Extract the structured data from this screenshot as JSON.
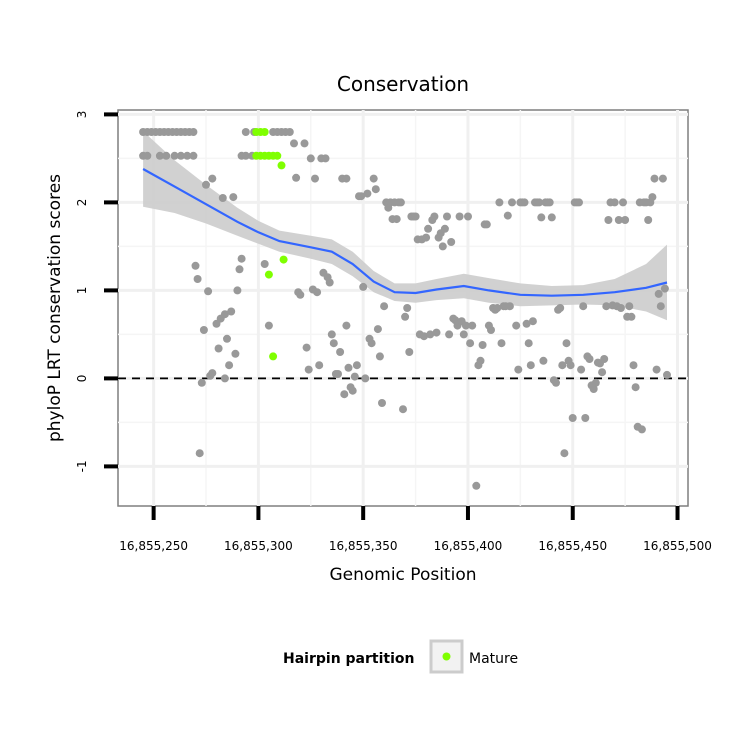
{
  "chart_data": {
    "type": "scatter",
    "title": "Conservation",
    "xlabel": "Genomic Position",
    "ylabel": "phyloP LRT conservation scores",
    "xlim": [
      16855233,
      16855505
    ],
    "ylim": [
      -1.45,
      3.05
    ],
    "x_ticks": [
      16855250,
      16855300,
      16855350,
      16855400,
      16855450,
      16855500
    ],
    "x_tick_labels": [
      "16,855,250",
      "16,855,300",
      "16,855,350",
      "16,855,400",
      "16,855,450",
      "16,855,500"
    ],
    "y_ticks": [
      -1,
      0,
      1,
      2,
      3
    ],
    "y_tick_labels": [
      "-1",
      "0",
      "1",
      "2",
      "3"
    ],
    "grid": true,
    "reference_line_y": 0,
    "colors": {
      "other": "#999999",
      "mature": "#7fff00",
      "smooth": "#3366ff",
      "band": "#cccccc"
    },
    "legend": {
      "title": "Hairpin partition",
      "entries": [
        "Mature"
      ],
      "position": "bottom"
    },
    "series": [
      {
        "key": "other",
        "points": [
          [
            16855245,
            2.8
          ],
          [
            16855247,
            2.8
          ],
          [
            16855249,
            2.8
          ],
          [
            16855251,
            2.8
          ],
          [
            16855253,
            2.8
          ],
          [
            16855255,
            2.8
          ],
          [
            16855257,
            2.8
          ],
          [
            16855259,
            2.8
          ],
          [
            16855261,
            2.8
          ],
          [
            16855263,
            2.8
          ],
          [
            16855265,
            2.8
          ],
          [
            16855267,
            2.8
          ],
          [
            16855269,
            2.8
          ],
          [
            16855245,
            2.53
          ],
          [
            16855247,
            2.53
          ],
          [
            16855253,
            2.53
          ],
          [
            16855256,
            2.53
          ],
          [
            16855260,
            2.53
          ],
          [
            16855263,
            2.53
          ],
          [
            16855266,
            2.53
          ],
          [
            16855269,
            2.53
          ],
          [
            16855270,
            1.28
          ],
          [
            16855271,
            1.13
          ],
          [
            16855272,
            -0.85
          ],
          [
            16855273,
            -0.05
          ],
          [
            16855274,
            0.55
          ],
          [
            16855275,
            2.2
          ],
          [
            16855276,
            0.99
          ],
          [
            16855277,
            0.03
          ],
          [
            16855278,
            2.27
          ],
          [
            16855278,
            0.06
          ],
          [
            16855280,
            0.62
          ],
          [
            16855281,
            0.34
          ],
          [
            16855282,
            0.68
          ],
          [
            16855283,
            2.05
          ],
          [
            16855284,
            0.73
          ],
          [
            16855284,
            0.0
          ],
          [
            16855285,
            0.45
          ],
          [
            16855286,
            0.15
          ],
          [
            16855287,
            0.76
          ],
          [
            16855288,
            2.06
          ],
          [
            16855289,
            0.28
          ],
          [
            16855290,
            1.0
          ],
          [
            16855291,
            1.24
          ],
          [
            16855292,
            1.36
          ],
          [
            16855292,
            2.53
          ],
          [
            16855294,
            2.53
          ],
          [
            16855294,
            2.8
          ],
          [
            16855297,
            2.53
          ],
          [
            16855298,
            2.8
          ],
          [
            16855303,
            1.3
          ],
          [
            16855305,
            0.6
          ],
          [
            16855307,
            2.8
          ],
          [
            16855309,
            2.8
          ],
          [
            16855311,
            2.8
          ],
          [
            16855313,
            2.8
          ],
          [
            16855315,
            2.8
          ],
          [
            16855317,
            2.67
          ],
          [
            16855318,
            2.28
          ],
          [
            16855319,
            0.98
          ],
          [
            16855320,
            0.95
          ],
          [
            16855322,
            2.67
          ],
          [
            16855323,
            0.35
          ],
          [
            16855324,
            0.1
          ],
          [
            16855325,
            2.5
          ],
          [
            16855326,
            1.01
          ],
          [
            16855327,
            2.27
          ],
          [
            16855328,
            0.98
          ],
          [
            16855329,
            0.15
          ],
          [
            16855330,
            2.5
          ],
          [
            16855331,
            1.2
          ],
          [
            16855332,
            2.5
          ],
          [
            16855333,
            1.15
          ],
          [
            16855334,
            1.09
          ],
          [
            16855335,
            0.5
          ],
          [
            16855336,
            0.4
          ],
          [
            16855337,
            0.05
          ],
          [
            16855338,
            0.05
          ],
          [
            16855339,
            0.3
          ],
          [
            16855340,
            2.27
          ],
          [
            16855341,
            -0.18
          ],
          [
            16855342,
            2.27
          ],
          [
            16855342,
            0.6
          ],
          [
            16855343,
            0.12
          ],
          [
            16855344,
            -0.1
          ],
          [
            16855345,
            -0.14
          ],
          [
            16855346,
            0.02
          ],
          [
            16855347,
            0.15
          ],
          [
            16855348,
            2.07
          ],
          [
            16855349,
            2.07
          ],
          [
            16855350,
            1.04
          ],
          [
            16855351,
            0.0
          ],
          [
            16855352,
            2.1
          ],
          [
            16855353,
            0.45
          ],
          [
            16855354,
            0.4
          ],
          [
            16855355,
            2.27
          ],
          [
            16855356,
            2.15
          ],
          [
            16855357,
            0.56
          ],
          [
            16855358,
            0.25
          ],
          [
            16855359,
            -0.28
          ],
          [
            16855360,
            0.82
          ],
          [
            16855361,
            2.0
          ],
          [
            16855362,
            1.94
          ],
          [
            16855363,
            2.0
          ],
          [
            16855364,
            1.81
          ],
          [
            16855365,
            2.0
          ],
          [
            16855366,
            1.81
          ],
          [
            16855367,
            2.0
          ],
          [
            16855368,
            2.0
          ],
          [
            16855369,
            -0.35
          ],
          [
            16855370,
            0.7
          ],
          [
            16855371,
            0.8
          ],
          [
            16855372,
            0.3
          ],
          [
            16855373,
            1.84
          ],
          [
            16855374,
            1.84
          ],
          [
            16855375,
            1.84
          ],
          [
            16855376,
            1.58
          ],
          [
            16855377,
            0.5
          ],
          [
            16855378,
            1.58
          ],
          [
            16855379,
            0.48
          ],
          [
            16855380,
            1.6
          ],
          [
            16855381,
            1.7
          ],
          [
            16855382,
            0.5
          ],
          [
            16855383,
            1.8
          ],
          [
            16855384,
            1.84
          ],
          [
            16855385,
            0.52
          ],
          [
            16855386,
            1.6
          ],
          [
            16855387,
            1.65
          ],
          [
            16855388,
            1.5
          ],
          [
            16855389,
            1.7
          ],
          [
            16855390,
            1.84
          ],
          [
            16855391,
            0.5
          ],
          [
            16855392,
            1.55
          ],
          [
            16855393,
            0.68
          ],
          [
            16855394,
            0.66
          ],
          [
            16855395,
            0.6
          ],
          [
            16855396,
            1.84
          ],
          [
            16855397,
            0.65
          ],
          [
            16855398,
            0.5
          ],
          [
            16855399,
            0.6
          ],
          [
            16855400,
            1.84
          ],
          [
            16855401,
            0.4
          ],
          [
            16855402,
            0.6
          ],
          [
            16855404,
            -1.22
          ],
          [
            16855405,
            0.15
          ],
          [
            16855406,
            0.2
          ],
          [
            16855407,
            0.38
          ],
          [
            16855408,
            1.75
          ],
          [
            16855409,
            1.75
          ],
          [
            16855410,
            0.6
          ],
          [
            16855411,
            0.55
          ],
          [
            16855412,
            0.8
          ],
          [
            16855413,
            0.78
          ],
          [
            16855414,
            0.8
          ],
          [
            16855415,
            2.0
          ],
          [
            16855416,
            0.4
          ],
          [
            16855417,
            0.82
          ],
          [
            16855418,
            0.82
          ],
          [
            16855419,
            1.85
          ],
          [
            16855420,
            0.82
          ],
          [
            16855421,
            2.0
          ],
          [
            16855423,
            0.6
          ],
          [
            16855424,
            0.1
          ],
          [
            16855425,
            2.0
          ],
          [
            16855426,
            2.0
          ],
          [
            16855427,
            2.0
          ],
          [
            16855428,
            0.62
          ],
          [
            16855429,
            0.4
          ],
          [
            16855430,
            0.15
          ],
          [
            16855431,
            0.65
          ],
          [
            16855432,
            2.0
          ],
          [
            16855433,
            2.0
          ],
          [
            16855434,
            2.0
          ],
          [
            16855435,
            1.83
          ],
          [
            16855436,
            0.2
          ],
          [
            16855437,
            2.0
          ],
          [
            16855438,
            2.0
          ],
          [
            16855439,
            2.0
          ],
          [
            16855440,
            1.83
          ],
          [
            16855441,
            -0.02
          ],
          [
            16855442,
            -0.05
          ],
          [
            16855443,
            0.78
          ],
          [
            16855444,
            0.8
          ],
          [
            16855445,
            0.15
          ],
          [
            16855446,
            -0.85
          ],
          [
            16855447,
            0.4
          ],
          [
            16855448,
            0.2
          ],
          [
            16855449,
            0.15
          ],
          [
            16855450,
            -0.45
          ],
          [
            16855451,
            2.0
          ],
          [
            16855452,
            2.0
          ],
          [
            16855453,
            2.0
          ],
          [
            16855454,
            0.1
          ],
          [
            16855455,
            0.82
          ],
          [
            16855456,
            -0.45
          ],
          [
            16855457,
            0.25
          ],
          [
            16855458,
            0.22
          ],
          [
            16855459,
            -0.08
          ],
          [
            16855460,
            -0.12
          ],
          [
            16855461,
            -0.05
          ],
          [
            16855462,
            0.18
          ],
          [
            16855463,
            0.17
          ],
          [
            16855464,
            0.07
          ],
          [
            16855465,
            0.22
          ],
          [
            16855466,
            0.82
          ],
          [
            16855467,
            1.8
          ],
          [
            16855468,
            2.0
          ],
          [
            16855469,
            0.83
          ],
          [
            16855470,
            2.0
          ],
          [
            16855471,
            0.82
          ],
          [
            16855472,
            1.8
          ],
          [
            16855473,
            0.8
          ],
          [
            16855474,
            2.0
          ],
          [
            16855475,
            1.8
          ],
          [
            16855476,
            0.7
          ],
          [
            16855477,
            0.82
          ],
          [
            16855478,
            0.7
          ],
          [
            16855479,
            0.15
          ],
          [
            16855480,
            -0.1
          ],
          [
            16855481,
            -0.55
          ],
          [
            16855482,
            2.0
          ],
          [
            16855483,
            -0.58
          ],
          [
            16855484,
            2.0
          ],
          [
            16855485,
            2.0
          ],
          [
            16855486,
            1.8
          ],
          [
            16855487,
            2.0
          ],
          [
            16855488,
            2.06
          ],
          [
            16855489,
            2.27
          ],
          [
            16855490,
            0.1
          ],
          [
            16855491,
            0.96
          ],
          [
            16855492,
            0.82
          ],
          [
            16855493,
            2.27
          ],
          [
            16855494,
            1.02
          ],
          [
            16855495,
            0.04
          ]
        ]
      },
      {
        "key": "mature",
        "name": "Mature",
        "points": [
          [
            16855299,
            2.8
          ],
          [
            16855301,
            2.8
          ],
          [
            16855303,
            2.8
          ],
          [
            16855299,
            2.53
          ],
          [
            16855301,
            2.53
          ],
          [
            16855303,
            2.53
          ],
          [
            16855305,
            2.53
          ],
          [
            16855307,
            2.53
          ],
          [
            16855309,
            2.53
          ],
          [
            16855311,
            2.42
          ],
          [
            16855305,
            1.18
          ],
          [
            16855307,
            0.25
          ],
          [
            16855312,
            1.35
          ]
        ]
      }
    ],
    "smooth_line": {
      "x": [
        16855245,
        16855260,
        16855275,
        16855290,
        16855300,
        16855310,
        16855325,
        16855335,
        16855345,
        16855355,
        16855365,
        16855375,
        16855385,
        16855398,
        16855410,
        16855425,
        16855440,
        16855455,
        16855470,
        16855485,
        16855495
      ],
      "y": [
        2.38,
        2.18,
        1.98,
        1.78,
        1.66,
        1.56,
        1.49,
        1.44,
        1.3,
        1.1,
        0.98,
        0.97,
        1.01,
        1.05,
        1.0,
        0.95,
        0.94,
        0.95,
        0.98,
        1.03,
        1.09
      ],
      "lower": [
        1.95,
        1.88,
        1.76,
        1.62,
        1.53,
        1.44,
        1.36,
        1.3,
        1.16,
        0.98,
        0.88,
        0.86,
        0.89,
        0.91,
        0.86,
        0.82,
        0.83,
        0.84,
        0.83,
        0.76,
        0.66
      ],
      "upper": [
        2.81,
        2.48,
        2.2,
        1.94,
        1.79,
        1.68,
        1.62,
        1.58,
        1.44,
        1.22,
        1.08,
        1.08,
        1.13,
        1.19,
        1.14,
        1.08,
        1.05,
        1.06,
        1.13,
        1.3,
        1.52
      ]
    }
  }
}
